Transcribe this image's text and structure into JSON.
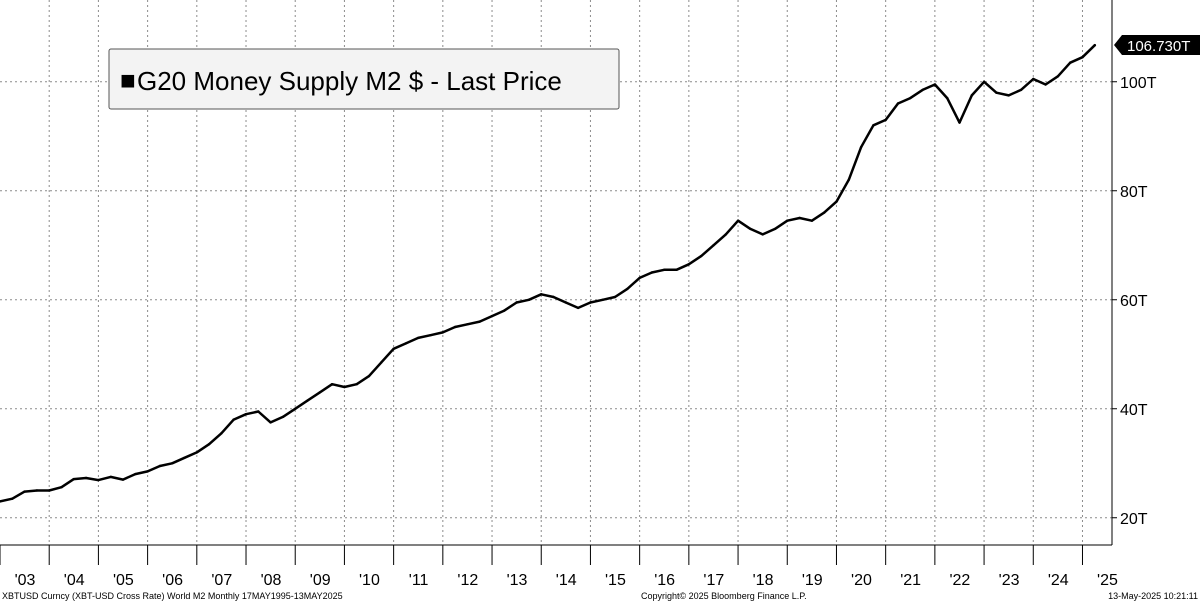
{
  "chart_data": {
    "type": "line",
    "legend": {
      "label": "G20 Money Supply M2 $ - Last Price",
      "placement": "top-left",
      "marker": "■"
    },
    "last_value_label": "106.730T",
    "y_unit": "T",
    "ylim": [
      15,
      115
    ],
    "yticks": [
      {
        "value": 20,
        "label": "20T"
      },
      {
        "value": 40,
        "label": "40T"
      },
      {
        "value": 60,
        "label": "60T"
      },
      {
        "value": 80,
        "label": "80T"
      },
      {
        "value": 100,
        "label": "100T"
      }
    ],
    "xlim": [
      2003.0,
      2025.6
    ],
    "xticks": [
      {
        "value": 2003,
        "label": "'03"
      },
      {
        "value": 2004,
        "label": "'04"
      },
      {
        "value": 2005,
        "label": "'05"
      },
      {
        "value": 2006,
        "label": "'06"
      },
      {
        "value": 2007,
        "label": "'07"
      },
      {
        "value": 2008,
        "label": "'08"
      },
      {
        "value": 2009,
        "label": "'09"
      },
      {
        "value": 2010,
        "label": "'10"
      },
      {
        "value": 2011,
        "label": "'11"
      },
      {
        "value": 2012,
        "label": "'12"
      },
      {
        "value": 2013,
        "label": "'13"
      },
      {
        "value": 2014,
        "label": "'14"
      },
      {
        "value": 2015,
        "label": "'15"
      },
      {
        "value": 2016,
        "label": "'16"
      },
      {
        "value": 2017,
        "label": "'17"
      },
      {
        "value": 2018,
        "label": "'18"
      },
      {
        "value": 2019,
        "label": "'19"
      },
      {
        "value": 2020,
        "label": "'20"
      },
      {
        "value": 2021,
        "label": "'21"
      },
      {
        "value": 2022,
        "label": "'22"
      },
      {
        "value": 2023,
        "label": "'23"
      },
      {
        "value": 2024,
        "label": "'24"
      },
      {
        "value": 2025,
        "label": "'25"
      }
    ],
    "grid": true,
    "series": [
      {
        "color": "#000000",
        "x": [
          2003.0,
          2003.25,
          2003.5,
          2003.75,
          2004.0,
          2004.25,
          2004.5,
          2004.75,
          2005.0,
          2005.25,
          2005.5,
          2005.75,
          2006.0,
          2006.25,
          2006.5,
          2006.75,
          2007.0,
          2007.25,
          2007.5,
          2007.75,
          2008.0,
          2008.25,
          2008.5,
          2008.75,
          2009.0,
          2009.25,
          2009.5,
          2009.75,
          2010.0,
          2010.25,
          2010.5,
          2010.75,
          2011.0,
          2011.25,
          2011.5,
          2011.75,
          2012.0,
          2012.25,
          2012.5,
          2012.75,
          2013.0,
          2013.25,
          2013.5,
          2013.75,
          2014.0,
          2014.25,
          2014.5,
          2014.75,
          2015.0,
          2015.25,
          2015.5,
          2015.75,
          2016.0,
          2016.25,
          2016.5,
          2016.75,
          2017.0,
          2017.25,
          2017.5,
          2017.75,
          2018.0,
          2018.25,
          2018.5,
          2018.75,
          2019.0,
          2019.25,
          2019.5,
          2019.75,
          2020.0,
          2020.25,
          2020.5,
          2020.75,
          2021.0,
          2021.25,
          2021.5,
          2021.75,
          2022.0,
          2022.25,
          2022.5,
          2022.75,
          2023.0,
          2023.25,
          2023.5,
          2023.75,
          2024.0,
          2024.25,
          2024.5,
          2024.75,
          2025.0,
          2025.25
        ],
        "values": [
          23.0,
          23.5,
          24.8,
          25.0,
          25.0,
          25.6,
          27.1,
          27.3,
          26.9,
          27.5,
          27.0,
          28.0,
          28.5,
          29.5,
          30.0,
          31.0,
          32.0,
          33.5,
          35.5,
          38.0,
          39.0,
          39.5,
          37.5,
          38.5,
          40.0,
          41.5,
          43.0,
          44.5,
          44.0,
          44.5,
          46.0,
          48.5,
          51.0,
          52.0,
          53.0,
          53.5,
          54.0,
          55.0,
          55.5,
          56.0,
          57.0,
          58.0,
          59.5,
          60.0,
          61.0,
          60.5,
          59.5,
          58.5,
          59.5,
          60.0,
          60.5,
          62.0,
          64.0,
          65.0,
          65.5,
          65.5,
          66.5,
          68.0,
          70.0,
          72.0,
          74.5,
          73.0,
          72.0,
          73.0,
          74.5,
          75.0,
          74.5,
          76.0,
          78.0,
          82.0,
          88.0,
          92.0,
          93.0,
          96.0,
          97.0,
          98.5,
          99.5,
          97.0,
          92.5,
          97.5,
          100.0,
          98.0,
          97.5,
          98.5,
          100.5,
          99.5,
          101.0,
          103.5,
          104.5,
          106.7
        ]
      }
    ]
  },
  "footer": {
    "left": "XBTUSD Curncy (XBT-USD Cross Rate) World M2  Monthly 17MAY1995-13MAY2025",
    "center": "Copyright© 2025 Bloomberg Finance L.P.",
    "right": "13-May-2025 10:21:11"
  }
}
